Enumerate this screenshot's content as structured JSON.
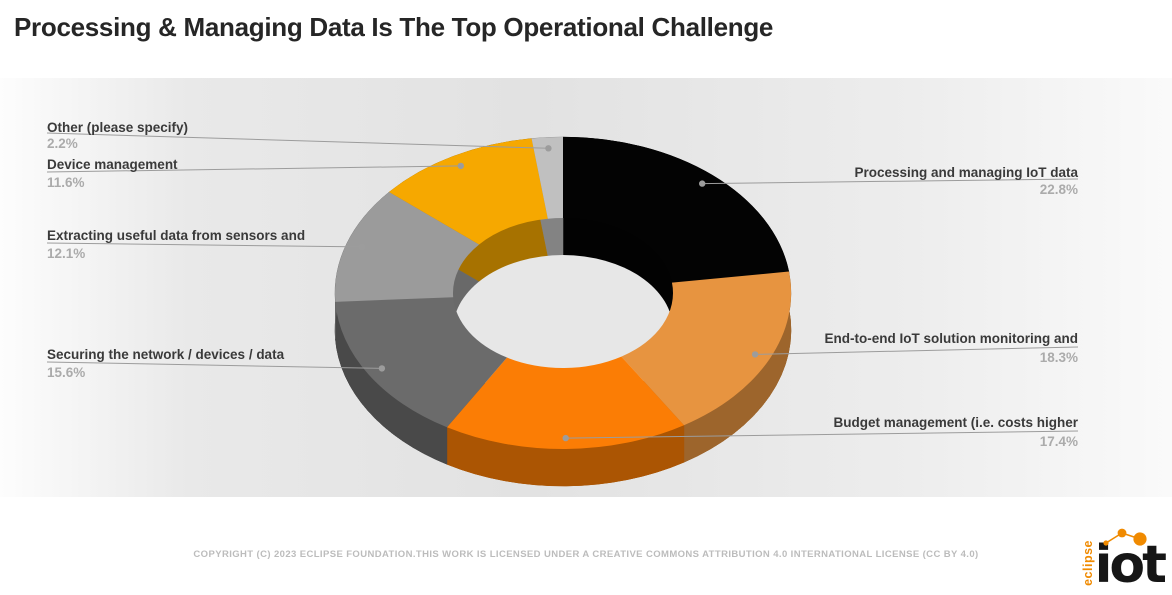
{
  "title": "Processing & Managing Data Is The Top Operational Challenge",
  "footer": {
    "copyright": "COPYRIGHT (C) 2023 ECLIPSE FOUNDATION.THIS WORK IS LICENSED UNDER A CREATIVE COMMONS ATTRIBUTION 4.0 INTERNATIONAL LICENSE (CC BY 4.0)"
  },
  "logo": {
    "brand_vertical": "eclipse",
    "brand_main": "iot"
  },
  "colors": {
    "accent_orange": "#f08a00",
    "title_text": "#262626",
    "label_text": "#3a3a3a",
    "percent_text": "#ababab",
    "callout_line": "#9c9c9c",
    "callout_dot": "#9c9c9c",
    "hole_floor": "#e7e7e7",
    "footer_text": "#bcbcbc"
  },
  "chart_data": {
    "type": "pie",
    "variant": "3d-donut",
    "title": "Processing & Managing Data Is The Top Operational Challenge",
    "unit": "%",
    "total": 100,
    "start_angle_deg": 0,
    "direction": "clockwise",
    "legend_position": "callout-labels",
    "slices": [
      {
        "key": "processing-managing-iot-data",
        "label": "Processing and managing IoT data",
        "value": 22.8,
        "display": "22.8%",
        "color": "#030303"
      },
      {
        "key": "end-to-end-monitoring",
        "label": "End-to-end IoT solution monitoring and",
        "value": 18.3,
        "display": "18.3%",
        "color": "#e79440"
      },
      {
        "key": "budget-management",
        "label": "Budget management (i.e. costs higher",
        "value": 17.4,
        "display": "17.4%",
        "color": "#fb7d05"
      },
      {
        "key": "securing-network-devices-data",
        "label": "Securing the network / devices / data",
        "value": 15.6,
        "display": "15.6%",
        "color": "#6b6b6b"
      },
      {
        "key": "extracting-data-from-sensors",
        "label": "Extracting useful data from sensors and",
        "value": 12.1,
        "display": "12.1%",
        "color": "#9b9b9b"
      },
      {
        "key": "device-management",
        "label": "Device management",
        "value": 11.6,
        "display": "11.6%",
        "color": "#f6a800"
      },
      {
        "key": "other",
        "label": "Other (please specify)",
        "value": 2.2,
        "display": "2.2%",
        "color": "#c0c0c0"
      }
    ]
  }
}
